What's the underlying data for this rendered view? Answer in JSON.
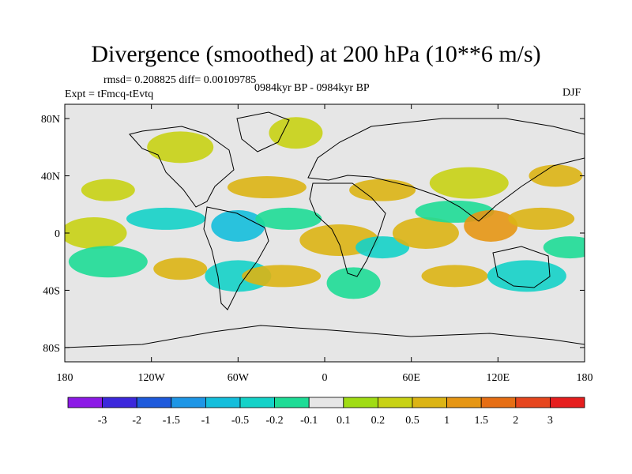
{
  "title": "Divergence (smoothed) at 200 hPa (10**6 m/s)",
  "stats": "rmsd= 0.208825 diff= 0.00109785",
  "experiment": "Expt = tFmcq-tEvtq",
  "period": "0984kyr BP - 0984kyr BP",
  "season": "DJF",
  "map": {
    "lon_range": [
      -180,
      180
    ],
    "lat_range": [
      -90,
      90
    ],
    "lat_ticks": [
      {
        "value": 80,
        "label": "80N"
      },
      {
        "value": 40,
        "label": "40N"
      },
      {
        "value": 0,
        "label": "0"
      },
      {
        "value": -40,
        "label": "40S"
      },
      {
        "value": -80,
        "label": "80S"
      }
    ],
    "lon_ticks": [
      {
        "value": -180,
        "label": "180"
      },
      {
        "value": -120,
        "label": "120W"
      },
      {
        "value": -60,
        "label": "60W"
      },
      {
        "value": 0,
        "label": "0"
      },
      {
        "value": 60,
        "label": "60E"
      },
      {
        "value": 120,
        "label": "120E"
      },
      {
        "value": 180,
        "label": "180"
      }
    ],
    "background_color": "#e6e6e6"
  },
  "colorbar": {
    "colors": [
      "#8c1ae6",
      "#3c28dc",
      "#1e5adc",
      "#1e96e6",
      "#14bedc",
      "#14d2c8",
      "#1edc96",
      "#e6e6e6",
      "#a0dc14",
      "#c8d214",
      "#dcb414",
      "#e69614",
      "#e66e14",
      "#e6461e",
      "#e61e1e"
    ],
    "labels": [
      "-3",
      "-2",
      "-1.5",
      "-1",
      "-0.5",
      "-0.2",
      "-0.1",
      "0.1",
      "0.2",
      "0.5",
      "1",
      "1.5",
      "2",
      "3"
    ]
  },
  "anomalies": [
    {
      "lon": -150,
      "lat": 30,
      "value": 0.2
    },
    {
      "lon": -100,
      "lat": 60,
      "value": 0.2
    },
    {
      "lon": -40,
      "lat": 32,
      "value": 0.5
    },
    {
      "lon": -20,
      "lat": 70,
      "value": 0.2
    },
    {
      "lon": 40,
      "lat": 30,
      "value": 0.5
    },
    {
      "lon": 100,
      "lat": 35,
      "value": 0.2
    },
    {
      "lon": 160,
      "lat": 40,
      "value": 0.5
    },
    {
      "lon": -160,
      "lat": 0,
      "value": 0.2
    },
    {
      "lon": -110,
      "lat": 10,
      "value": -0.5
    },
    {
      "lon": -60,
      "lat": 5,
      "value": -1
    },
    {
      "lon": -25,
      "lat": 10,
      "value": -0.2
    },
    {
      "lon": 10,
      "lat": -5,
      "value": 0.5
    },
    {
      "lon": 40,
      "lat": -10,
      "value": -0.5
    },
    {
      "lon": 70,
      "lat": 0,
      "value": 0.5
    },
    {
      "lon": 90,
      "lat": 15,
      "value": -0.2
    },
    {
      "lon": 115,
      "lat": 5,
      "value": 1
    },
    {
      "lon": 150,
      "lat": 10,
      "value": 0.5
    },
    {
      "lon": -150,
      "lat": -20,
      "value": -0.2
    },
    {
      "lon": -100,
      "lat": -25,
      "value": 0.5
    },
    {
      "lon": -60,
      "lat": -30,
      "value": -0.5
    },
    {
      "lon": -30,
      "lat": -30,
      "value": 0.5
    },
    {
      "lon": 20,
      "lat": -35,
      "value": -0.2
    },
    {
      "lon": 90,
      "lat": -30,
      "value": 0.5
    },
    {
      "lon": 140,
      "lat": -30,
      "value": -0.5
    },
    {
      "lon": 170,
      "lat": -10,
      "value": -0.2
    }
  ]
}
